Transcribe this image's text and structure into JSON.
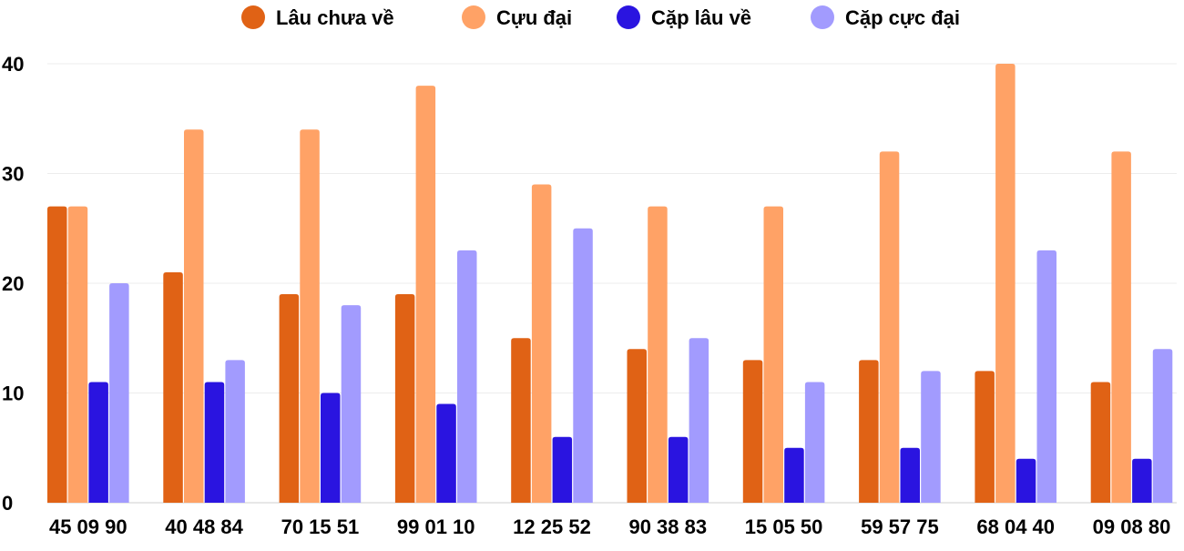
{
  "chart_data": {
    "type": "bar",
    "title": "",
    "xlabel": "",
    "ylabel": "",
    "ylim": [
      0,
      40
    ],
    "yticks": [
      "0",
      "10",
      "20",
      "30",
      "40"
    ],
    "grid": true,
    "legend_position": "top",
    "categories": [
      "45 09 90",
      "40 48 84",
      "70 15 51",
      "99 01 10",
      "12 25 52",
      "90 38 83",
      "15 05 50",
      "59 57 75",
      "68 04 40",
      "09 08 80"
    ],
    "series": [
      {
        "name": "Lâu chưa về",
        "color": "#E06215",
        "values": [
          27,
          21,
          19,
          19,
          15,
          14,
          13,
          13,
          12,
          11
        ]
      },
      {
        "name": "Cựu đại",
        "color": "#FFA266",
        "values": [
          27,
          34,
          34,
          38,
          29,
          27,
          27,
          32,
          40,
          32
        ]
      },
      {
        "name": "Cặp lâu về",
        "color": "#2A14E0",
        "values": [
          11,
          11,
          10,
          9,
          6,
          6,
          5,
          5,
          4,
          4
        ]
      },
      {
        "name": "Cặp cực đại",
        "color": "#A29BFE",
        "values": [
          20,
          13,
          18,
          23,
          25,
          15,
          11,
          12,
          23,
          14
        ]
      }
    ]
  }
}
